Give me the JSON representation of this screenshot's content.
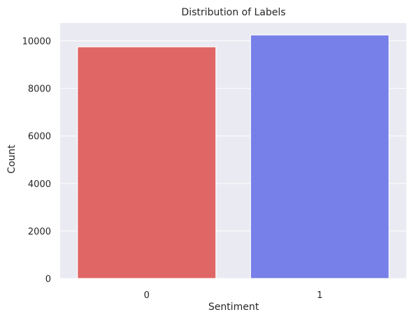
{
  "chart_data": {
    "type": "bar",
    "title": "Distribution of Labels",
    "xlabel": "Sentiment",
    "ylabel": "Count",
    "categories": [
      "0",
      "1"
    ],
    "values": [
      9750,
      10250
    ],
    "ylim": [
      0,
      10750
    ],
    "yticks": [
      0,
      2000,
      4000,
      6000,
      8000,
      10000
    ],
    "grid": true,
    "legend": "none",
    "colors": {
      "background": "#eaeaf2",
      "grid": "#ffffff",
      "bars": [
        "#e06666",
        "#7780e8"
      ],
      "bar_edge": "#ffffff",
      "text": "#262626"
    }
  }
}
